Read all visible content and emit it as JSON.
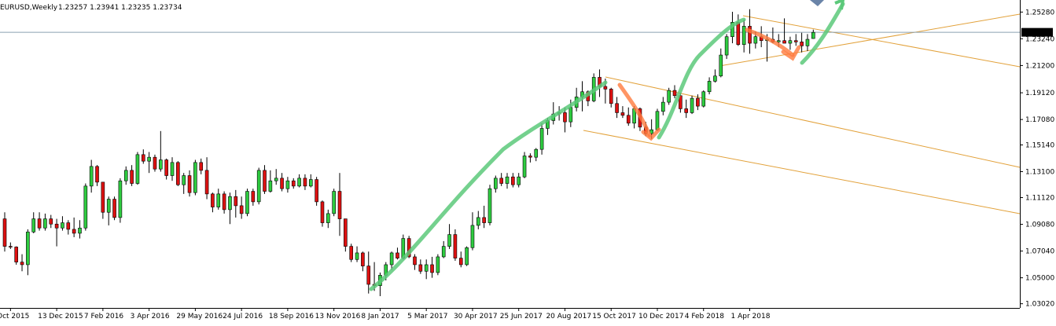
{
  "header": {
    "symbol": "EURUSD,Weekly",
    "ohlc": "1.23257 1.23941 1.23235 1.23734"
  },
  "colors": {
    "bull": "#2ecc40",
    "bear": "#dd1111",
    "wick": "#000000",
    "channel": "#e2a13a",
    "price_line": "#8aa0b0",
    "green_arrow": "#5cc97a",
    "orange_arrow": "#ff7a3d",
    "price_tag_bg": "#000000",
    "price_tag_fg": "#ffffff"
  },
  "chart_data": {
    "type": "candlestick",
    "symbol": "EURUSD",
    "timeframe": "Weekly",
    "current_price": 1.23734,
    "ylim": [
      1.027,
      1.262
    ],
    "y_ticks": [
      "1.25280",
      "1.23240",
      "1.21200",
      "1.19120",
      "1.17080",
      "1.15140",
      "1.13100",
      "1.11120",
      "1.09080",
      "1.07040",
      "1.05000",
      "1.03020"
    ],
    "x_labels": [
      "Oct 2015",
      "13 Dec 2015",
      "7 Feb 2016",
      "3 Apr 2016",
      "29 May 2016",
      "24 Jul 2016",
      "18 Sep 2016",
      "13 Nov 2016",
      "8 Jan 2017",
      "5 Mar 2017",
      "30 Apr 2017",
      "25 Jun 2017",
      "20 Aug 2017",
      "15 Oct 2017",
      "10 Dec 2017",
      "4 Feb 2018",
      "1 Apr 2018"
    ],
    "candles": [
      [
        1.095,
        1.1,
        1.07,
        1.074
      ],
      [
        1.074,
        1.077,
        1.072,
        1.0735
      ],
      [
        1.0735,
        1.074,
        1.06,
        1.062
      ],
      [
        1.062,
        1.068,
        1.055,
        1.06
      ],
      [
        1.06,
        1.087,
        1.052,
        1.085
      ],
      [
        1.085,
        1.1,
        1.084,
        1.095
      ],
      [
        1.095,
        1.1,
        1.086,
        1.088
      ],
      [
        1.088,
        1.099,
        1.086,
        1.095
      ],
      [
        1.095,
        1.098,
        1.088,
        1.091
      ],
      [
        1.091,
        1.095,
        1.074,
        1.088
      ],
      [
        1.088,
        1.097,
        1.086,
        1.092
      ],
      [
        1.092,
        1.094,
        1.083,
        1.087
      ],
      [
        1.087,
        1.096,
        1.081,
        1.084
      ],
      [
        1.084,
        1.094,
        1.08,
        1.088
      ],
      [
        1.088,
        1.122,
        1.086,
        1.12
      ],
      [
        1.12,
        1.14,
        1.115,
        1.135
      ],
      [
        1.135,
        1.136,
        1.12,
        1.123
      ],
      [
        1.123,
        1.123,
        1.095,
        1.1
      ],
      [
        1.1,
        1.112,
        1.09,
        1.11
      ],
      [
        1.11,
        1.112,
        1.094,
        1.096
      ],
      [
        1.096,
        1.126,
        1.092,
        1.124
      ],
      [
        1.124,
        1.135,
        1.121,
        1.132
      ],
      [
        1.132,
        1.136,
        1.12,
        1.122
      ],
      [
        1.122,
        1.146,
        1.121,
        1.144
      ],
      [
        1.144,
        1.148,
        1.137,
        1.139
      ],
      [
        1.139,
        1.146,
        1.13,
        1.142
      ],
      [
        1.142,
        1.144,
        1.131,
        1.133
      ],
      [
        1.133,
        1.162,
        1.131,
        1.14
      ],
      [
        1.14,
        1.141,
        1.125,
        1.128
      ],
      [
        1.128,
        1.142,
        1.124,
        1.138
      ],
      [
        1.138,
        1.139,
        1.12,
        1.121
      ],
      [
        1.121,
        1.13,
        1.114,
        1.128
      ],
      [
        1.128,
        1.132,
        1.112,
        1.115
      ],
      [
        1.115,
        1.14,
        1.113,
        1.138
      ],
      [
        1.138,
        1.141,
        1.129,
        1.132
      ],
      [
        1.132,
        1.142,
        1.11,
        1.114
      ],
      [
        1.114,
        1.115,
        1.1,
        1.104
      ],
      [
        1.104,
        1.118,
        1.102,
        1.114
      ],
      [
        1.114,
        1.116,
        1.099,
        1.102
      ],
      [
        1.102,
        1.115,
        1.091,
        1.112
      ],
      [
        1.112,
        1.117,
        1.096,
        1.105
      ],
      [
        1.105,
        1.112,
        1.095,
        1.099
      ],
      [
        1.099,
        1.118,
        1.097,
        1.116
      ],
      [
        1.116,
        1.118,
        1.105,
        1.108
      ],
      [
        1.108,
        1.134,
        1.106,
        1.132
      ],
      [
        1.132,
        1.136,
        1.114,
        1.116
      ],
      [
        1.116,
        1.132,
        1.115,
        1.124
      ],
      [
        1.124,
        1.133,
        1.121,
        1.126
      ],
      [
        1.126,
        1.13,
        1.116,
        1.118
      ],
      [
        1.118,
        1.127,
        1.115,
        1.124
      ],
      [
        1.124,
        1.126,
        1.118,
        1.12
      ],
      [
        1.12,
        1.129,
        1.119,
        1.126
      ],
      [
        1.126,
        1.129,
        1.117,
        1.12
      ],
      [
        1.12,
        1.129,
        1.119,
        1.125
      ],
      [
        1.125,
        1.127,
        1.105,
        1.108
      ],
      [
        1.108,
        1.109,
        1.089,
        1.092
      ],
      [
        1.092,
        1.102,
        1.088,
        1.099
      ],
      [
        1.099,
        1.118,
        1.097,
        1.116
      ],
      [
        1.116,
        1.13,
        1.082,
        1.095
      ],
      [
        1.095,
        1.095,
        1.07,
        1.074
      ],
      [
        1.074,
        1.076,
        1.062,
        1.064
      ],
      [
        1.064,
        1.074,
        1.062,
        1.069
      ],
      [
        1.069,
        1.07,
        1.055,
        1.059
      ],
      [
        1.059,
        1.07,
        1.038,
        1.045
      ],
      [
        1.045,
        1.062,
        1.04,
        1.044
      ],
      [
        1.044,
        1.054,
        1.036,
        1.052
      ],
      [
        1.052,
        1.062,
        1.048,
        1.06
      ],
      [
        1.06,
        1.07,
        1.056,
        1.069
      ],
      [
        1.069,
        1.073,
        1.064,
        1.065
      ],
      [
        1.065,
        1.083,
        1.064,
        1.08
      ],
      [
        1.08,
        1.082,
        1.065,
        1.066
      ],
      [
        1.066,
        1.068,
        1.056,
        1.06
      ],
      [
        1.06,
        1.064,
        1.053,
        1.055
      ],
      [
        1.055,
        1.064,
        1.049,
        1.06
      ],
      [
        1.06,
        1.066,
        1.05,
        1.054
      ],
      [
        1.054,
        1.068,
        1.052,
        1.066
      ],
      [
        1.066,
        1.078,
        1.065,
        1.074
      ],
      [
        1.074,
        1.091,
        1.072,
        1.083
      ],
      [
        1.083,
        1.087,
        1.063,
        1.065
      ],
      [
        1.065,
        1.07,
        1.058,
        1.06
      ],
      [
        1.06,
        1.074,
        1.059,
        1.073
      ],
      [
        1.073,
        1.1,
        1.071,
        1.09
      ],
      [
        1.09,
        1.101,
        1.087,
        1.096
      ],
      [
        1.096,
        1.105,
        1.088,
        1.092
      ],
      [
        1.092,
        1.121,
        1.09,
        1.118
      ],
      [
        1.118,
        1.128,
        1.115,
        1.126
      ],
      [
        1.126,
        1.13,
        1.12,
        1.122
      ],
      [
        1.122,
        1.13,
        1.118,
        1.127
      ],
      [
        1.127,
        1.13,
        1.119,
        1.121
      ],
      [
        1.121,
        1.13,
        1.119,
        1.127
      ],
      [
        1.127,
        1.146,
        1.126,
        1.143
      ],
      [
        1.143,
        1.145,
        1.138,
        1.142
      ],
      [
        1.142,
        1.149,
        1.139,
        1.148
      ],
      [
        1.148,
        1.168,
        1.144,
        1.164
      ],
      [
        1.164,
        1.172,
        1.159,
        1.17
      ],
      [
        1.17,
        1.184,
        1.167,
        1.175
      ],
      [
        1.175,
        1.181,
        1.17,
        1.176
      ],
      [
        1.176,
        1.18,
        1.161,
        1.169
      ],
      [
        1.169,
        1.186,
        1.165,
        1.18
      ],
      [
        1.18,
        1.195,
        1.177,
        1.188
      ],
      [
        1.188,
        1.2,
        1.177,
        1.192
      ],
      [
        1.192,
        1.193,
        1.181,
        1.185
      ],
      [
        1.185,
        1.206,
        1.184,
        1.203
      ],
      [
        1.203,
        1.209,
        1.188,
        1.196
      ],
      [
        1.196,
        1.202,
        1.183,
        1.194
      ],
      [
        1.194,
        1.195,
        1.18,
        1.183
      ],
      [
        1.183,
        1.188,
        1.172,
        1.176
      ],
      [
        1.176,
        1.181,
        1.172,
        1.174
      ],
      [
        1.174,
        1.18,
        1.166,
        1.168
      ],
      [
        1.168,
        1.181,
        1.164,
        1.179
      ],
      [
        1.179,
        1.18,
        1.162,
        1.165
      ],
      [
        1.165,
        1.169,
        1.158,
        1.16
      ],
      [
        1.16,
        1.171,
        1.156,
        1.163
      ],
      [
        1.163,
        1.179,
        1.162,
        1.177
      ],
      [
        1.177,
        1.188,
        1.174,
        1.184
      ],
      [
        1.184,
        1.195,
        1.182,
        1.193
      ],
      [
        1.193,
        1.197,
        1.187,
        1.189
      ],
      [
        1.189,
        1.191,
        1.176,
        1.179
      ],
      [
        1.179,
        1.186,
        1.172,
        1.176
      ],
      [
        1.176,
        1.189,
        1.175,
        1.187
      ],
      [
        1.187,
        1.19,
        1.178,
        1.181
      ],
      [
        1.181,
        1.193,
        1.18,
        1.192
      ],
      [
        1.192,
        1.203,
        1.19,
        1.2
      ],
      [
        1.2,
        1.209,
        1.199,
        1.204
      ],
      [
        1.204,
        1.225,
        1.203,
        1.22
      ],
      [
        1.22,
        1.236,
        1.217,
        1.234
      ],
      [
        1.234,
        1.253,
        1.229,
        1.245
      ],
      [
        1.245,
        1.251,
        1.227,
        1.228
      ],
      [
        1.228,
        1.247,
        1.222,
        1.242
      ],
      [
        1.242,
        1.255,
        1.221,
        1.229
      ],
      [
        1.229,
        1.238,
        1.225,
        1.234
      ],
      [
        1.234,
        1.242,
        1.226,
        1.231
      ],
      [
        1.231,
        1.236,
        1.215,
        1.232
      ],
      [
        1.232,
        1.241,
        1.229,
        1.23
      ],
      [
        1.23,
        1.236,
        1.226,
        1.231
      ],
      [
        1.231,
        1.248,
        1.229,
        1.229
      ],
      [
        1.229,
        1.234,
        1.224,
        1.231
      ],
      [
        1.231,
        1.236,
        1.227,
        1.23
      ],
      [
        1.23,
        1.237,
        1.222,
        1.227
      ],
      [
        1.227,
        1.236,
        1.223,
        1.232
      ],
      [
        1.2326,
        1.2394,
        1.2324,
        1.2373
      ]
    ]
  }
}
